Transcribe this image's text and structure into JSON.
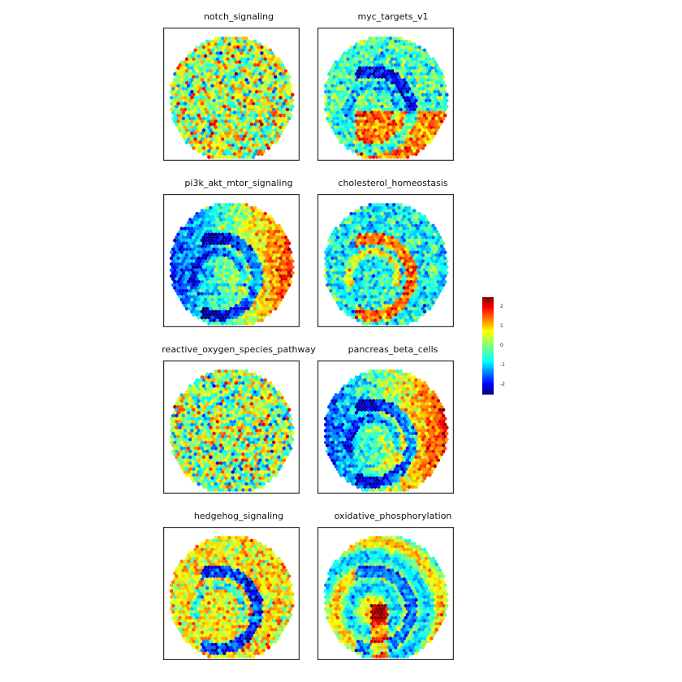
{
  "chart_data": {
    "type": "scatter",
    "description_kind": "spatial spot map",
    "layout": "4 rows x 2 columns",
    "colormap": "jet",
    "colorbar": {
      "min": -2.5,
      "max": 2.5,
      "ticks": [
        2,
        1,
        0,
        -1,
        -2
      ]
    },
    "panels": [
      {
        "title": "notch_signaling",
        "pattern": "noisy",
        "bias": 0.3
      },
      {
        "title": "myc_targets_v1",
        "pattern": "bottom-high",
        "bias": 0.0
      },
      {
        "title": "pi3k_akt_mtor_signaling",
        "pattern": "outer-right-high",
        "bias": 0.0
      },
      {
        "title": "cholesterol_homeostasis",
        "pattern": "arc-high",
        "bias": -0.2
      },
      {
        "title": "reactive_oxygen_species_pathway",
        "pattern": "noisy",
        "bias": 0.1
      },
      {
        "title": "pancreas_beta_cells",
        "pattern": "outer-right-high",
        "bias": 0.1
      },
      {
        "title": "hedgehog_signaling",
        "pattern": "arc-low",
        "bias": 0.2
      },
      {
        "title": "oxidative_phosphorylation",
        "pattern": "bands",
        "bias": 0.0
      }
    ]
  }
}
